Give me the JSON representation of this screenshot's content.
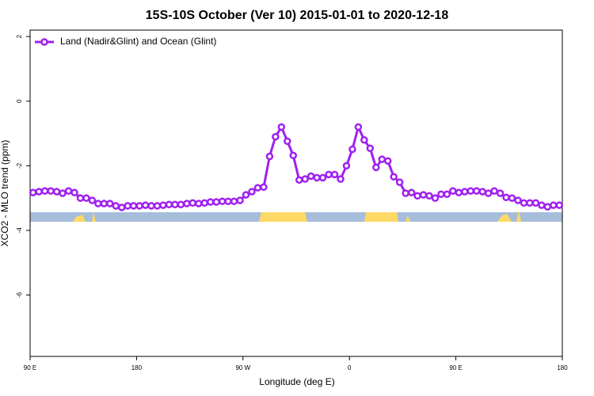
{
  "chart_data": {
    "type": "line",
    "title": "15S-10S October (Ver 10)   2015-01-01 to 2020-12-18",
    "x_label": "Longitude (deg E)",
    "y_label": "XCO2 - MLO trend (ppm)",
    "x": [
      -267.5,
      -262.5,
      -257.5,
      -252.5,
      -247.5,
      -242.5,
      -237.5,
      -232.5,
      -227.5,
      -222.5,
      -217.5,
      -212.5,
      -207.5,
      -202.5,
      -197.5,
      -192.5,
      -187.5,
      -182.5,
      -177.5,
      -172.5,
      -167.5,
      -162.5,
      -157.5,
      -152.5,
      -147.5,
      -142.5,
      -137.5,
      -132.5,
      -127.5,
      -122.5,
      -117.5,
      -112.5,
      -107.5,
      -102.5,
      -97.5,
      -92.5,
      -87.5,
      -82.5,
      -77.5,
      -72.5,
      -67.5,
      -62.5,
      -57.5,
      -52.5,
      -47.5,
      -42.5,
      -37.5,
      -32.5,
      -27.5,
      -22.5,
      -17.5,
      -12.5,
      -7.5,
      -2.5,
      2.5,
      7.5,
      12.5,
      17.5,
      22.5,
      27.5,
      32.5,
      37.5,
      42.5,
      47.5,
      52.5,
      57.5,
      62.5,
      67.5,
      72.5,
      77.5,
      82.5,
      87.5,
      92.5,
      97.5,
      102.5,
      107.5,
      112.5,
      117.5,
      122.5,
      127.5,
      132.5,
      137.5,
      142.5,
      147.5,
      152.5,
      157.5,
      162.5,
      167.5,
      172.5,
      177.5
    ],
    "series": [
      {
        "name": "Land (Nadir&Glint) and Ocean (Glint)",
        "color": "#a020f0",
        "values": [
          -2.83,
          -2.8,
          -2.78,
          -2.78,
          -2.8,
          -2.85,
          -2.78,
          -2.83,
          -3.0,
          -3.0,
          -3.07,
          -3.17,
          -3.17,
          -3.17,
          -3.24,
          -3.29,
          -3.24,
          -3.24,
          -3.24,
          -3.22,
          -3.24,
          -3.24,
          -3.22,
          -3.2,
          -3.2,
          -3.2,
          -3.17,
          -3.15,
          -3.17,
          -3.15,
          -3.12,
          -3.12,
          -3.1,
          -3.1,
          -3.1,
          -3.07,
          -2.9,
          -2.8,
          -2.68,
          -2.66,
          -1.71,
          -1.1,
          -0.8,
          -1.24,
          -1.68,
          -2.44,
          -2.41,
          -2.32,
          -2.37,
          -2.37,
          -2.27,
          -2.27,
          -2.41,
          -2.0,
          -1.49,
          -0.8,
          -1.2,
          -1.46,
          -2.05,
          -1.8,
          -1.85,
          -2.34,
          -2.51,
          -2.85,
          -2.83,
          -2.93,
          -2.9,
          -2.93,
          -3.0,
          -2.88,
          -2.88,
          -2.78,
          -2.83,
          -2.8,
          -2.78,
          -2.78,
          -2.8,
          -2.85,
          -2.78,
          -2.85,
          -2.98,
          -3.0,
          -3.07,
          -3.15,
          -3.15,
          -3.15,
          -3.22,
          -3.27,
          -3.22,
          -3.22
        ]
      }
    ],
    "xlim": [
      -270,
      180
    ],
    "ylim": [
      -7.9,
      2.2
    ],
    "xticks": [
      {
        "value": -270,
        "label": "90 E"
      },
      {
        "value": -180,
        "label": "180"
      },
      {
        "value": -90,
        "label": "90 W"
      },
      0,
      {
        "value": 90,
        "label": "90 E"
      },
      180
    ],
    "yticks": [
      -6,
      -4,
      -2,
      0,
      2
    ],
    "legend": "upper left"
  }
}
